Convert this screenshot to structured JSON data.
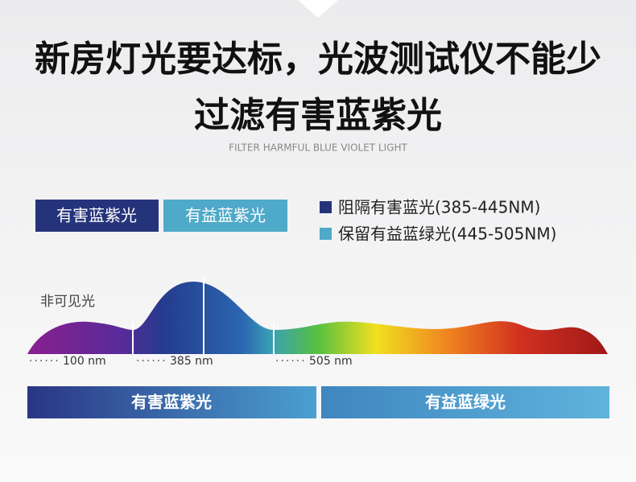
{
  "header": {
    "title_line1": "新房灯光要达标，光波测试仪不能少",
    "title_line2": "过滤有害蓝紫光",
    "subtitle": "FILTER HARMFUL BLUE VIOLET LIGHT"
  },
  "tags": [
    "有害蓝紫光",
    "有益蓝紫光"
  ],
  "legend": [
    "阻隔有害蓝光(385-445NM)",
    "保留有益蓝绿光(445-505NM)"
  ],
  "spectrum": {
    "label": "非可见光",
    "markers": [
      "100 nm",
      "385 nm",
      "505 nm"
    ]
  },
  "bands": [
    "有害蓝紫光",
    "有益蓝绿光"
  ]
}
